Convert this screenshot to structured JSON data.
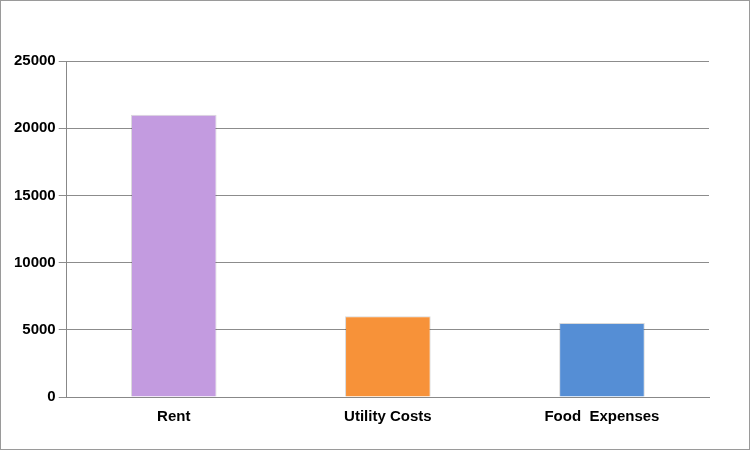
{
  "chart_data": {
    "type": "bar",
    "categories": [
      "Rent",
      "Utility Costs",
      "Food  Expenses"
    ],
    "values": [
      21000,
      6000,
      5500
    ],
    "colors": [
      "#c39be0",
      "#f79239",
      "#558ed5"
    ],
    "ylim": [
      0,
      25000
    ],
    "yticks": [
      0,
      5000,
      10000,
      15000,
      20000,
      25000
    ],
    "grid": true
  }
}
